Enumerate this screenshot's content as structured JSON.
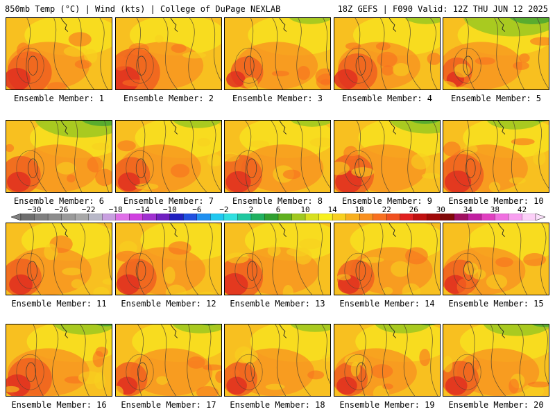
{
  "header": {
    "title_left": "850mb Temp (°C) | Wind (kts) | College of DuPage NEXLAB",
    "title_right": "18Z GEFS | F090 Valid: 12Z THU JUN 12 2025"
  },
  "members": [
    {
      "label": "Ensemble Member: 1",
      "green": 0.05,
      "hot": 0.7
    },
    {
      "label": "Ensemble Member: 2",
      "green": 0.05,
      "hot": 0.85
    },
    {
      "label": "Ensemble Member: 3",
      "green": 0.15,
      "hot": 0.45
    },
    {
      "label": "Ensemble Member: 4",
      "green": 0.15,
      "hot": 0.6
    },
    {
      "label": "Ensemble Member: 5",
      "green": 0.6,
      "hot": 0.4
    },
    {
      "label": "Ensemble Member: 6",
      "green": 0.55,
      "hot": 0.6
    },
    {
      "label": "Ensemble Member: 7",
      "green": 0.2,
      "hot": 0.55
    },
    {
      "label": "Ensemble Member: 8",
      "green": 0.15,
      "hot": 0.65
    },
    {
      "label": "Ensemble Member: 9",
      "green": 0.4,
      "hot": 0.7
    },
    {
      "label": "Ensemble Member: 10",
      "green": 0.25,
      "hot": 0.7
    },
    {
      "label": "Ensemble Member: 11",
      "green": 0.05,
      "hot": 0.6
    },
    {
      "label": "Ensemble Member: 12",
      "green": 0.05,
      "hot": 0.6
    },
    {
      "label": "Ensemble Member: 13",
      "green": 0.05,
      "hot": 0.7
    },
    {
      "label": "Ensemble Member: 14",
      "green": 0.05,
      "hot": 0.55
    },
    {
      "label": "Ensemble Member: 15",
      "green": 0.05,
      "hot": 0.55
    },
    {
      "label": "Ensemble Member: 16",
      "green": 0.3,
      "hot": 0.7
    },
    {
      "label": "Ensemble Member: 17",
      "green": 0.25,
      "hot": 0.5
    },
    {
      "label": "Ensemble Member: 18",
      "green": 0.2,
      "hot": 0.5
    },
    {
      "label": "Ensemble Member: 19",
      "green": 0.25,
      "hot": 0.5
    },
    {
      "label": "Ensemble Member: 20",
      "green": 0.35,
      "hot": 0.55
    }
  ],
  "colorbar": {
    "labels": [
      "−30",
      "−26",
      "−22",
      "−18",
      "−14",
      "−10",
      "−6",
      "−2",
      "2",
      "6",
      "10",
      "14",
      "18",
      "22",
      "26",
      "30",
      "34",
      "38",
      "42"
    ],
    "colors": [
      "#6e6e6e",
      "#808080",
      "#8c8c8c",
      "#9a9a9a",
      "#a9a9a9",
      "#b8b8c8",
      "#c8a0e0",
      "#e070e8",
      "#d040e0",
      "#a030d0",
      "#7020c0",
      "#2020c0",
      "#2050e0",
      "#2090f0",
      "#20c8f0",
      "#30e0e0",
      "#20c8a0",
      "#20b060",
      "#30a030",
      "#60b020",
      "#a0c820",
      "#d8e020",
      "#f8f020",
      "#f8d020",
      "#f8b020",
      "#f89020",
      "#f87020",
      "#f05020",
      "#e02020",
      "#c01010",
      "#a00808",
      "#800808",
      "#a01060",
      "#c020a0",
      "#e040c0",
      "#f070e0",
      "#f8a0f0",
      "#fcd0f8"
    ],
    "underflow_color": "#808080",
    "overflow_color": "#fce0fc"
  }
}
